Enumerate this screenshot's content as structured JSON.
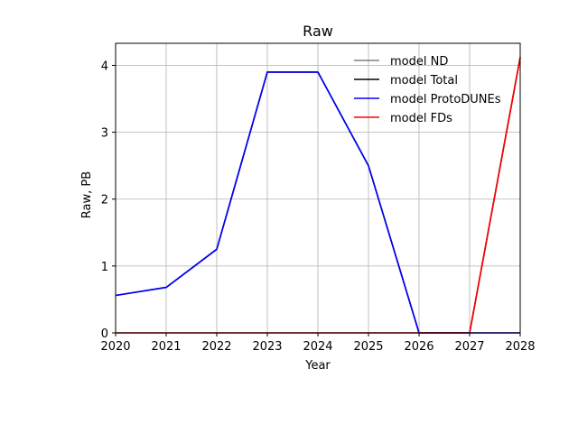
{
  "chart_data": {
    "type": "line",
    "title": "Raw",
    "xlabel": "Year",
    "ylabel": "Raw, PB",
    "x": [
      2020,
      2021,
      2022,
      2023,
      2024,
      2025,
      2026,
      2027,
      2028
    ],
    "xlim": [
      2020,
      2028
    ],
    "ylim": [
      0,
      4.33
    ],
    "xticks": [
      2020,
      2021,
      2022,
      2023,
      2024,
      2025,
      2026,
      2027,
      2028
    ],
    "yticks": [
      0,
      1,
      2,
      3,
      4
    ],
    "grid": true,
    "legend_position": "top-right",
    "series": [
      {
        "name": "model ND",
        "color": "#808080",
        "values": [
          0,
          0,
          0,
          0,
          0,
          0,
          0,
          0,
          0
        ]
      },
      {
        "name": "model Total",
        "color": "#000000",
        "values": [
          0.56,
          0.68,
          1.25,
          3.9,
          3.9,
          2.5,
          0.0,
          0.0,
          4.12
        ]
      },
      {
        "name": "model ProtoDUNEs",
        "color": "#0000ff",
        "values": [
          0.56,
          0.68,
          1.25,
          3.9,
          3.9,
          2.5,
          0,
          0,
          0
        ]
      },
      {
        "name": "model FDs",
        "color": "#ff0000",
        "values": [
          0,
          0,
          0,
          0,
          0,
          0,
          0,
          0,
          4.12
        ]
      }
    ]
  }
}
